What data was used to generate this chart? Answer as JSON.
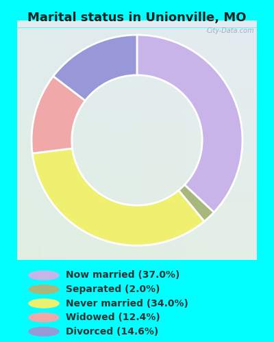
{
  "title": "Marital status in Unionville, MO",
  "background_color": "#00FFFF",
  "slices": [
    {
      "label": "Now married (37.0%)",
      "value": 37.0,
      "color": "#c8b4e8"
    },
    {
      "label": "Separated (2.0%)",
      "value": 2.0,
      "color": "#a8b87c"
    },
    {
      "label": "Never married (34.0%)",
      "value": 34.0,
      "color": "#f0f070"
    },
    {
      "label": "Widowed (12.4%)",
      "value": 12.4,
      "color": "#f0a8a8"
    },
    {
      "label": "Divorced (14.6%)",
      "value": 14.6,
      "color": "#9898d8"
    }
  ],
  "legend_colors": [
    "#c8b4e8",
    "#a8b87c",
    "#f0f070",
    "#f0a8a8",
    "#9898d8"
  ],
  "title_fontsize": 13,
  "legend_fontsize": 10,
  "watermark": "City-Data.com"
}
